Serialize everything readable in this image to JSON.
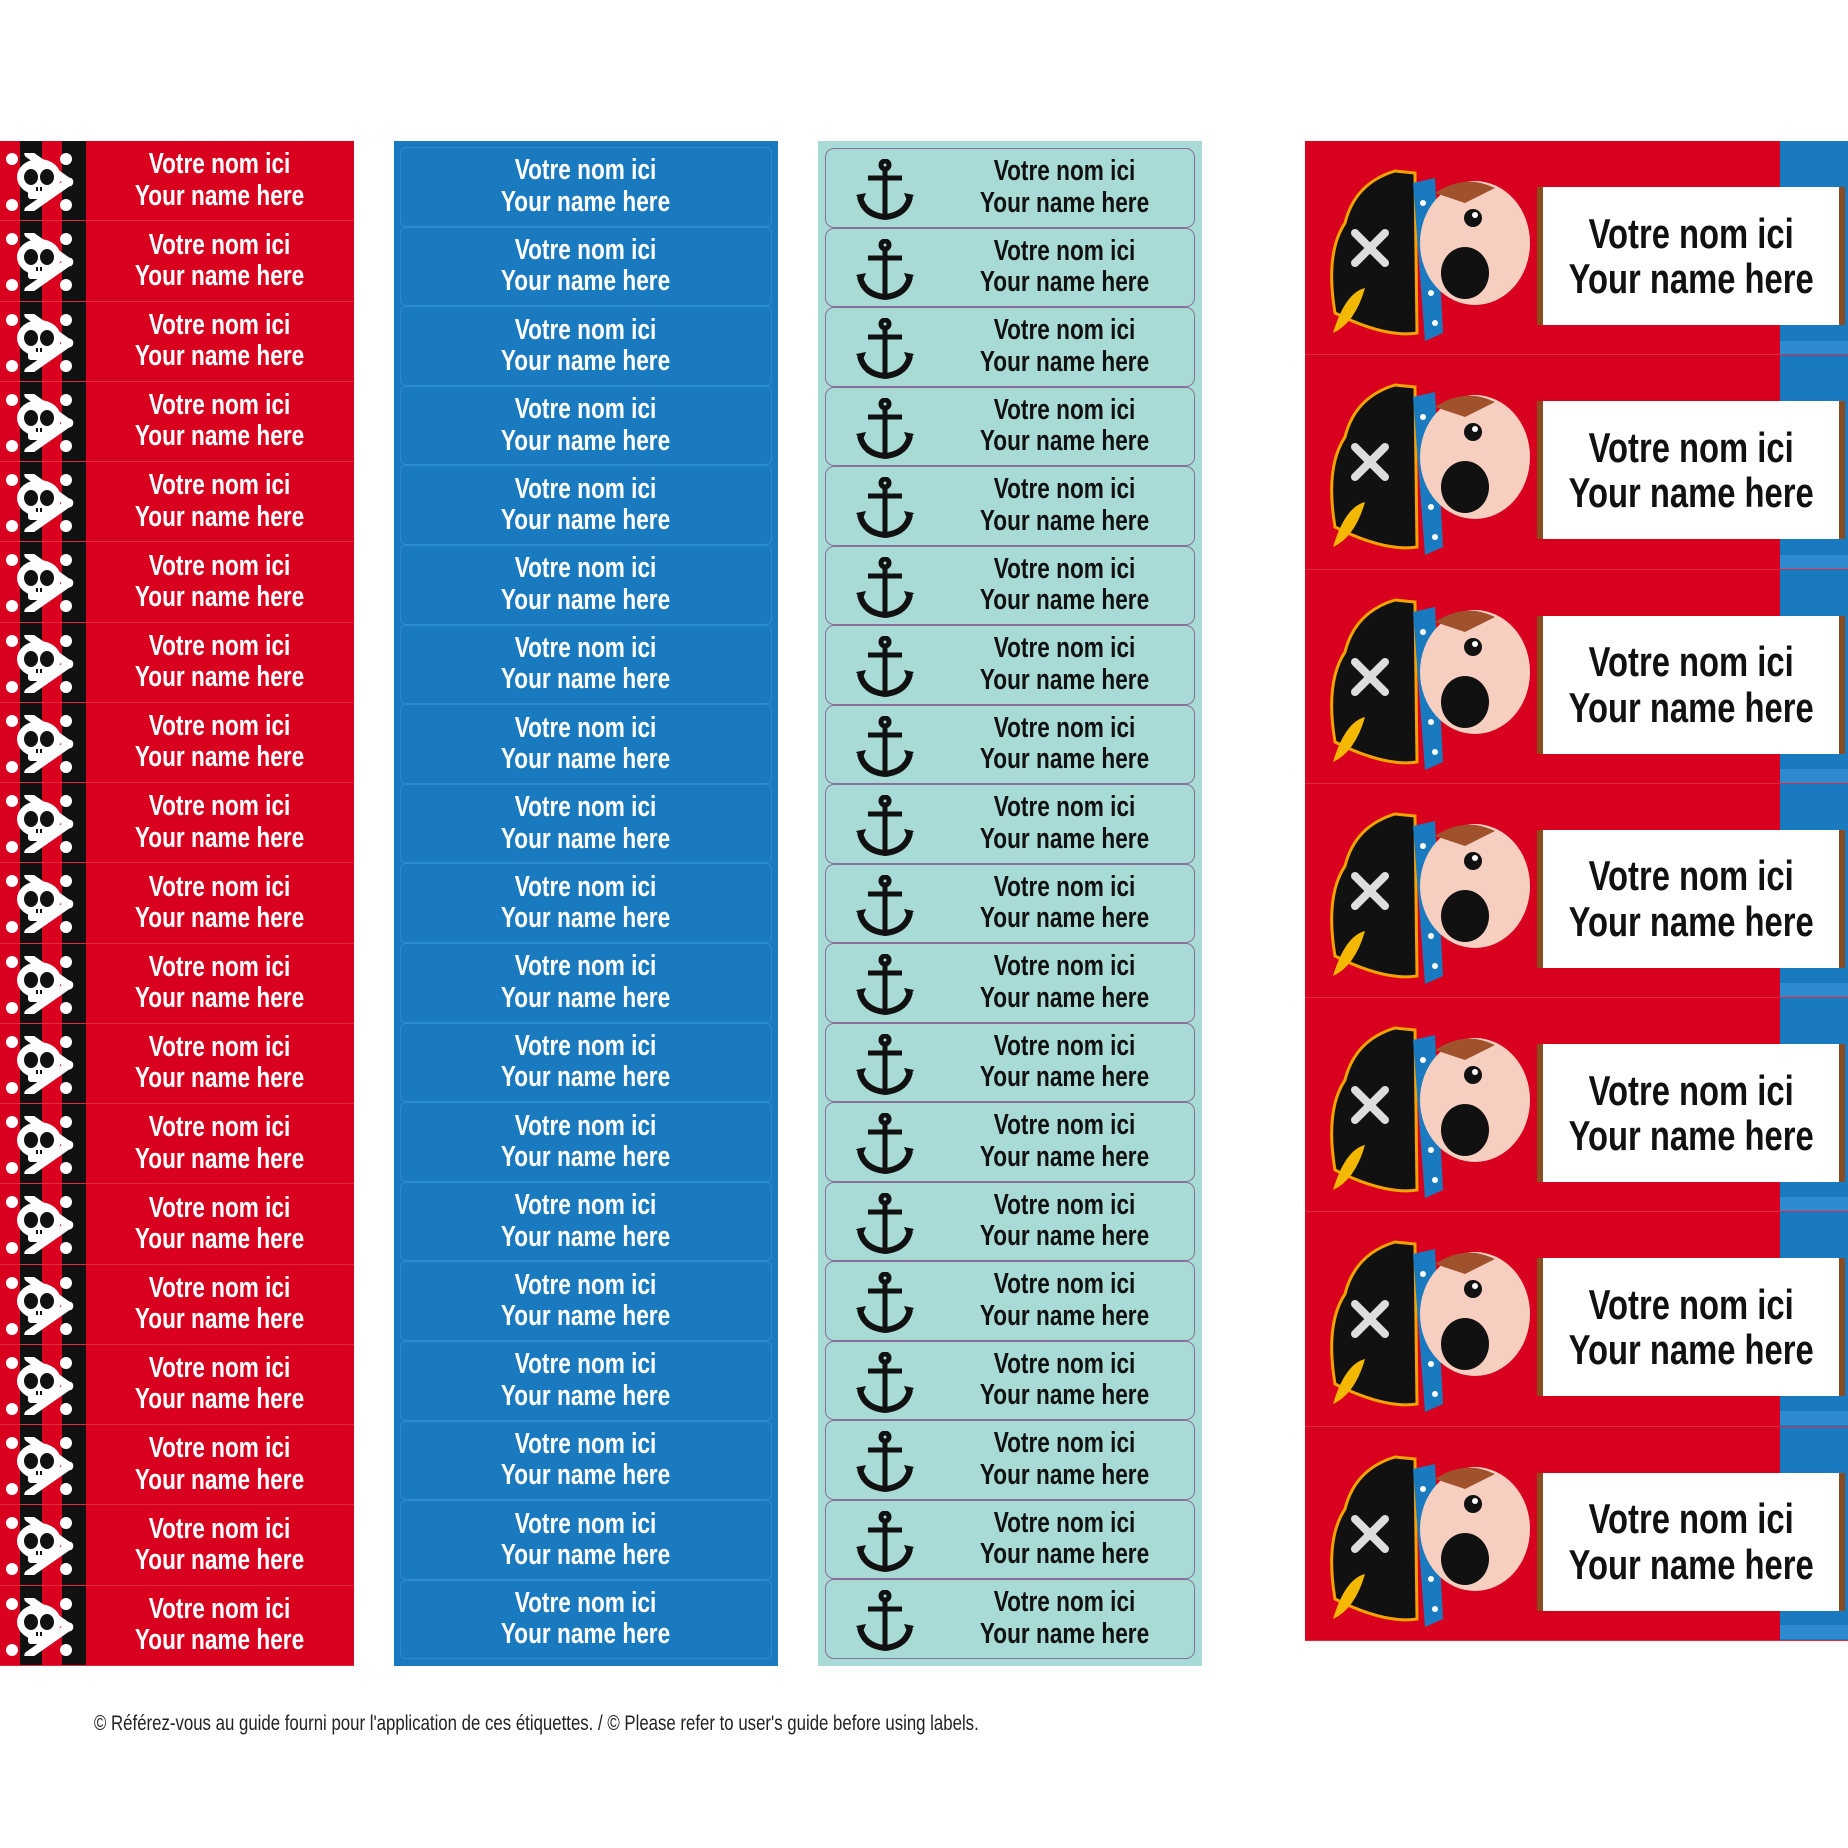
{
  "sheets": [
    {
      "theme": "skull-and-crossbones stripes",
      "background": "#d9001f",
      "label_count": 19,
      "line1": "Votre nom ici",
      "line2": "Your name here"
    },
    {
      "theme": "plain blue",
      "background": "#1a7ac0",
      "label_count": 19,
      "line1": "Votre nom ici",
      "line2": "Your name here"
    },
    {
      "theme": "anchor",
      "background": "#a8dbd5",
      "label_count": 19,
      "line1": "Votre nom ici",
      "line2": "Your name here"
    },
    {
      "theme": "pirate with banner",
      "background": "#d9001f",
      "label_count": 7,
      "line1": "Votre nom ici",
      "line2": "Your name here"
    }
  ],
  "footer": "© Référez-vous au guide fourni pour l'application de ces étiquettes. / © Please refer to user's guide before using labels."
}
